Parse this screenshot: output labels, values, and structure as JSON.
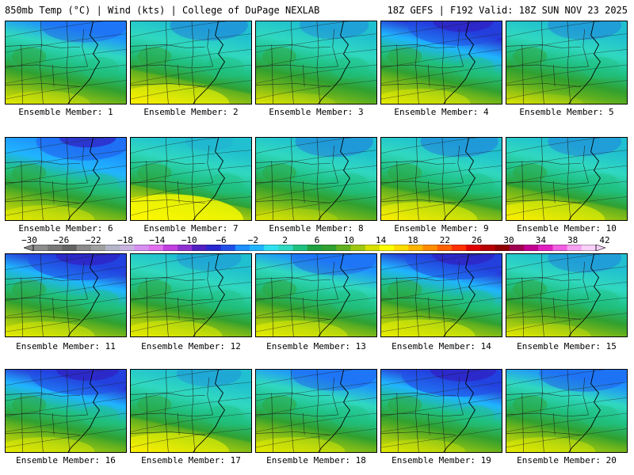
{
  "header": {
    "left": "850mb Temp (°C) | Wind (kts) | College of DuPage NEXLAB",
    "right": "18Z GEFS | F192 Valid: 18Z SUN NOV 23 2025"
  },
  "panels": [
    {
      "label": "Ensemble Member: 1",
      "cold": 0.55,
      "warm": 0.3
    },
    {
      "label": "Ensemble Member: 2",
      "cold": 0.45,
      "warm": 0.6
    },
    {
      "label": "Ensemble Member: 3",
      "cold": 0.35,
      "warm": 0.2
    },
    {
      "label": "Ensemble Member: 4",
      "cold": 0.75,
      "warm": 0.4
    },
    {
      "label": "Ensemble Member: 5",
      "cold": 0.4,
      "warm": 0.15
    },
    {
      "label": "Ensemble Member: 6",
      "cold": 0.65,
      "warm": 0.4
    },
    {
      "label": "Ensemble Member: 7",
      "cold": 0.1,
      "warm": 0.9
    },
    {
      "label": "Ensemble Member: 8",
      "cold": 0.45,
      "warm": 0.25
    },
    {
      "label": "Ensemble Member: 9",
      "cold": 0.45,
      "warm": 0.55
    },
    {
      "label": "Ensemble Member: 10",
      "cold": 0.4,
      "warm": 0.6
    },
    {
      "label": "Ensemble Member: 11",
      "cold": 0.85,
      "warm": 0.4
    },
    {
      "label": "Ensemble Member: 12",
      "cold": 0.3,
      "warm": 0.45
    },
    {
      "label": "Ensemble Member: 13",
      "cold": 0.55,
      "warm": 0.45
    },
    {
      "label": "Ensemble Member: 14",
      "cold": 0.8,
      "warm": 0.5
    },
    {
      "label": "Ensemble Member: 15",
      "cold": 0.4,
      "warm": 0.3
    },
    {
      "label": "Ensemble Member: 16",
      "cold": 0.8,
      "warm": 0.4
    },
    {
      "label": "Ensemble Member: 17",
      "cold": 0.3,
      "warm": 0.6
    },
    {
      "label": "Ensemble Member: 18",
      "cold": 0.55,
      "warm": 0.4
    },
    {
      "label": "Ensemble Member: 19",
      "cold": 0.9,
      "warm": 0.3
    },
    {
      "label": "Ensemble Member: 20",
      "cold": 0.6,
      "warm": 0.4
    }
  ],
  "colorbar": {
    "tick_labels": [
      "−30",
      "−26",
      "−22",
      "−18",
      "−14",
      "−10",
      "−6",
      "−2",
      "2",
      "6",
      "10",
      "14",
      "18",
      "22",
      "26",
      "30",
      "34",
      "38",
      "42"
    ],
    "colors": [
      "#8c8c8c",
      "#787878",
      "#646464",
      "#8a8a8a",
      "#a0a0a0",
      "#b4b4c8",
      "#c8b4e0",
      "#d690f0",
      "#e070f0",
      "#c040e0",
      "#9030d0",
      "#5020c0",
      "#2828d0",
      "#2050e8",
      "#1e90ff",
      "#20b4ff",
      "#30e0f0",
      "#30d8c0",
      "#20c080",
      "#20a040",
      "#30a030",
      "#60b020",
      "#a0c810",
      "#d8e000",
      "#ffff00",
      "#ffdc00",
      "#ffb400",
      "#ff8c00",
      "#ff6000",
      "#ff3000",
      "#e00000",
      "#b80000",
      "#900000",
      "#a00050",
      "#c00090",
      "#e020c0",
      "#f060e0",
      "#f8a0f0",
      "#f8d0f8"
    ]
  }
}
